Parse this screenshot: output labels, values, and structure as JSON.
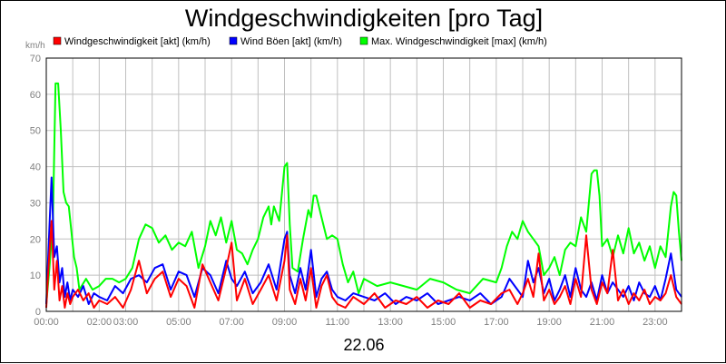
{
  "chart_data": {
    "type": "line",
    "title": "Windgeschwindigkeiten [pro Tag]",
    "ylabel": "km/h",
    "xlabel": "22.06",
    "ylim": [
      0,
      70
    ],
    "xlim": [
      0,
      24
    ],
    "yticks": [
      0,
      10,
      20,
      30,
      40,
      50,
      60,
      70
    ],
    "xticks": [
      {
        "x": 0,
        "label": "00:00"
      },
      {
        "x": 2,
        "label": "02:00"
      },
      {
        "x": 3,
        "label": "03:00"
      },
      {
        "x": 5,
        "label": "05:00"
      },
      {
        "x": 7,
        "label": "07:00"
      },
      {
        "x": 9,
        "label": "09:00"
      },
      {
        "x": 11,
        "label": "11:00"
      },
      {
        "x": 13,
        "label": "13:00"
      },
      {
        "x": 15,
        "label": "15:00"
      },
      {
        "x": 17,
        "label": "17:00"
      },
      {
        "x": 19,
        "label": "19:00"
      },
      {
        "x": 21,
        "label": "21:00"
      },
      {
        "x": 23,
        "label": "23:00"
      }
    ],
    "grid": true,
    "legend": "top",
    "series": [
      {
        "name": "Max. Windgeschwindigkeit [max] (km/h)",
        "color": "#00ff00",
        "x": [
          0,
          0.12,
          0.25,
          0.35,
          0.45,
          0.55,
          0.65,
          0.75,
          0.85,
          0.95,
          1.05,
          1.15,
          1.25,
          1.5,
          1.75,
          2.0,
          2.25,
          2.5,
          2.75,
          3.0,
          3.25,
          3.5,
          3.75,
          4.0,
          4.25,
          4.5,
          4.75,
          5.0,
          5.25,
          5.5,
          5.75,
          6.0,
          6.2,
          6.4,
          6.6,
          6.8,
          7.0,
          7.2,
          7.4,
          7.6,
          7.8,
          8.0,
          8.2,
          8.4,
          8.5,
          8.6,
          8.8,
          9.0,
          9.1,
          9.2,
          9.3,
          9.5,
          9.7,
          9.9,
          10.0,
          10.1,
          10.2,
          10.4,
          10.6,
          10.8,
          11.0,
          11.2,
          11.4,
          11.6,
          11.8,
          12.0,
          12.5,
          13.0,
          13.5,
          14.0,
          14.5,
          15.0,
          15.5,
          16.0,
          16.5,
          17.0,
          17.2,
          17.4,
          17.6,
          17.8,
          18.0,
          18.2,
          18.4,
          18.6,
          18.8,
          19.0,
          19.2,
          19.4,
          19.6,
          19.8,
          20.0,
          20.2,
          20.4,
          20.5,
          20.6,
          20.7,
          20.8,
          20.9,
          21.0,
          21.2,
          21.4,
          21.6,
          21.8,
          22.0,
          22.2,
          22.4,
          22.6,
          22.8,
          23.0,
          23.2,
          23.4,
          23.5,
          23.6,
          23.7,
          23.8,
          23.9,
          24.0
        ],
        "values": [
          2,
          12,
          25,
          63,
          63,
          50,
          33,
          30,
          29,
          22,
          15,
          12,
          6,
          9,
          6,
          7,
          9,
          9,
          8,
          9,
          12,
          20,
          24,
          23,
          19,
          21,
          17,
          19,
          18,
          22,
          12,
          18,
          25,
          21,
          26,
          19,
          25,
          17,
          16,
          13,
          17,
          20,
          26,
          29,
          24,
          29,
          25,
          40,
          41,
          24,
          12,
          11,
          20,
          28,
          26,
          32,
          32,
          26,
          20,
          21,
          20,
          13,
          8,
          11,
          5,
          9,
          7,
          8,
          7,
          6,
          9,
          8,
          6,
          5,
          9,
          8,
          12,
          18,
          22,
          20,
          25,
          22,
          20,
          18,
          10,
          12,
          15,
          10,
          17,
          19,
          18,
          26,
          22,
          30,
          38,
          39,
          39,
          32,
          18,
          20,
          15,
          21,
          16,
          23,
          16,
          19,
          14,
          18,
          12,
          18,
          15,
          22,
          29,
          33,
          32,
          22,
          14
        ]
      },
      {
        "name": "Wind Böen [akt] (km/h)",
        "color": "#0000ff",
        "x": [
          0,
          0.1,
          0.2,
          0.3,
          0.4,
          0.5,
          0.6,
          0.7,
          0.8,
          0.9,
          1.0,
          1.2,
          1.4,
          1.6,
          1.8,
          2.0,
          2.3,
          2.6,
          2.9,
          3.2,
          3.5,
          3.8,
          4.1,
          4.4,
          4.7,
          5.0,
          5.3,
          5.6,
          5.9,
          6.2,
          6.5,
          6.8,
          7.0,
          7.2,
          7.5,
          7.8,
          8.1,
          8.4,
          8.7,
          9.0,
          9.1,
          9.2,
          9.4,
          9.6,
          9.8,
          10.0,
          10.2,
          10.4,
          10.6,
          10.8,
          11.0,
          11.3,
          11.6,
          12.0,
          12.4,
          12.8,
          13.2,
          13.6,
          14.0,
          14.4,
          14.8,
          15.2,
          15.6,
          16.0,
          16.4,
          16.8,
          17.2,
          17.5,
          17.8,
          18.0,
          18.2,
          18.4,
          18.6,
          18.8,
          19.0,
          19.2,
          19.4,
          19.6,
          19.8,
          20.0,
          20.2,
          20.4,
          20.6,
          20.8,
          21.0,
          21.2,
          21.4,
          21.6,
          21.8,
          22.0,
          22.2,
          22.4,
          22.6,
          22.8,
          23.0,
          23.2,
          23.4,
          23.6,
          23.8,
          24.0
        ],
        "values": [
          2,
          20,
          37,
          15,
          18,
          8,
          12,
          4,
          8,
          3,
          6,
          4,
          7,
          2,
          5,
          4,
          3,
          7,
          5,
          9,
          10,
          8,
          12,
          13,
          6,
          11,
          10,
          4,
          12,
          10,
          5,
          14,
          9,
          7,
          11,
          5,
          8,
          13,
          6,
          20,
          22,
          10,
          5,
          12,
          6,
          17,
          4,
          9,
          11,
          6,
          4,
          3,
          5,
          4,
          3,
          5,
          2,
          4,
          3,
          5,
          2,
          3,
          4,
          3,
          5,
          2,
          4,
          9,
          6,
          4,
          14,
          8,
          12,
          5,
          9,
          3,
          6,
          10,
          4,
          12,
          6,
          4,
          8,
          3,
          10,
          5,
          8,
          6,
          4,
          7,
          3,
          8,
          5,
          4,
          7,
          3,
          9,
          16,
          6,
          4
        ]
      },
      {
        "name": "Windgeschwindigkeit [akt] (km/h)",
        "color": "#ff0000",
        "x": [
          0,
          0.1,
          0.2,
          0.3,
          0.4,
          0.5,
          0.6,
          0.7,
          0.8,
          0.9,
          1.0,
          1.2,
          1.4,
          1.6,
          1.8,
          2.0,
          2.3,
          2.6,
          2.9,
          3.2,
          3.5,
          3.8,
          4.1,
          4.4,
          4.7,
          5.0,
          5.3,
          5.6,
          5.9,
          6.2,
          6.5,
          6.8,
          7.0,
          7.2,
          7.5,
          7.8,
          8.1,
          8.4,
          8.7,
          9.0,
          9.1,
          9.2,
          9.4,
          9.6,
          9.8,
          10.0,
          10.2,
          10.4,
          10.6,
          10.8,
          11.0,
          11.3,
          11.6,
          12.0,
          12.4,
          12.8,
          13.2,
          13.6,
          14.0,
          14.4,
          14.8,
          15.2,
          15.6,
          16.0,
          16.4,
          16.8,
          17.2,
          17.5,
          17.8,
          18.0,
          18.2,
          18.4,
          18.6,
          18.8,
          19.0,
          19.2,
          19.4,
          19.6,
          19.8,
          20.0,
          20.2,
          20.4,
          20.6,
          20.8,
          21.0,
          21.2,
          21.4,
          21.6,
          21.8,
          22.0,
          22.2,
          22.4,
          22.6,
          22.8,
          23.0,
          23.2,
          23.4,
          23.6,
          23.8,
          24.0
        ],
        "values": [
          1,
          14,
          25,
          6,
          14,
          3,
          7,
          1,
          5,
          2,
          4,
          6,
          3,
          5,
          1,
          3,
          2,
          4,
          1,
          6,
          14,
          5,
          9,
          11,
          4,
          9,
          7,
          1,
          13,
          8,
          3,
          12,
          19,
          3,
          9,
          2,
          6,
          10,
          3,
          14,
          21,
          6,
          2,
          9,
          3,
          12,
          1,
          7,
          10,
          4,
          2,
          1,
          4,
          2,
          5,
          1,
          3,
          2,
          4,
          1,
          3,
          2,
          5,
          1,
          3,
          2,
          5,
          6,
          2,
          5,
          9,
          4,
          16,
          3,
          6,
          2,
          4,
          7,
          2,
          9,
          4,
          21,
          6,
          2,
          8,
          5,
          17,
          3,
          6,
          2,
          5,
          3,
          6,
          2,
          4,
          3,
          5,
          10,
          4,
          2
        ]
      }
    ]
  }
}
